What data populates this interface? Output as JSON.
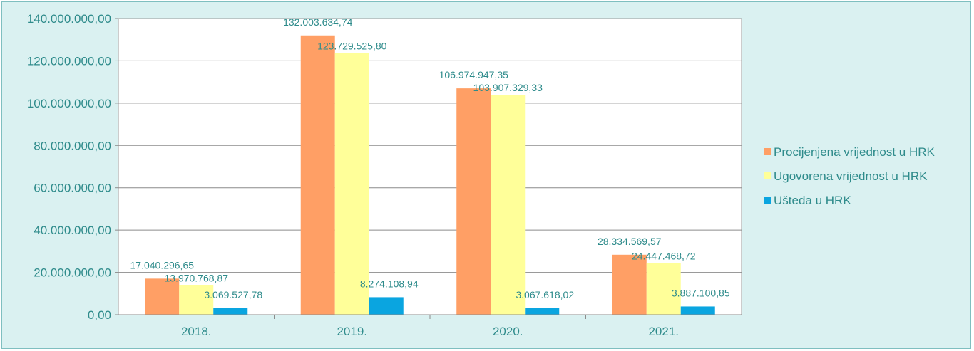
{
  "chart_data": {
    "type": "bar",
    "title": "",
    "xlabel": "",
    "ylabel": "",
    "categories": [
      "2018.",
      "2019.",
      "2020.",
      "2021."
    ],
    "ylim": [
      0,
      140000000
    ],
    "yticks": [
      {
        "value": 0,
        "label": "0,00"
      },
      {
        "value": 20000000,
        "label": "20.000.000,00"
      },
      {
        "value": 40000000,
        "label": "40.000.000,00"
      },
      {
        "value": 60000000,
        "label": "60.000.000,00"
      },
      {
        "value": 80000000,
        "label": "80.000.000,00"
      },
      {
        "value": 100000000,
        "label": "100.000.000,00"
      },
      {
        "value": 120000000,
        "label": "120.000.000,00"
      },
      {
        "value": 140000000,
        "label": "140.000.000,00"
      }
    ],
    "grid": true,
    "legend_position": "right",
    "series": [
      {
        "name": "Procijenjena vrijednost u HRK",
        "color": "#ff9f65",
        "values": [
          17040296.65,
          132003634.74,
          106974947.35,
          28334569.57
        ],
        "labels": [
          "17.040.296,65",
          "132.003.634,74",
          "106.974.947,35",
          "28.334.569,57"
        ]
      },
      {
        "name": "Ugovorena vrijednost u HRK",
        "color": "#ffff99",
        "values": [
          13970768.87,
          123729525.8,
          103907329.33,
          24447468.72
        ],
        "labels": [
          "13.970.768,87",
          "123.729.525,80",
          "103.907.329,33",
          "24.447.468,72"
        ]
      },
      {
        "name": "Ušteda u HRK",
        "color": "#0aa5e0",
        "values": [
          3069527.78,
          8274108.94,
          3067618.02,
          3887100.85
        ],
        "labels": [
          "3.069.527,78",
          "8.274.108,94",
          "3.067.618,02",
          "3.887.100,85"
        ]
      }
    ]
  }
}
